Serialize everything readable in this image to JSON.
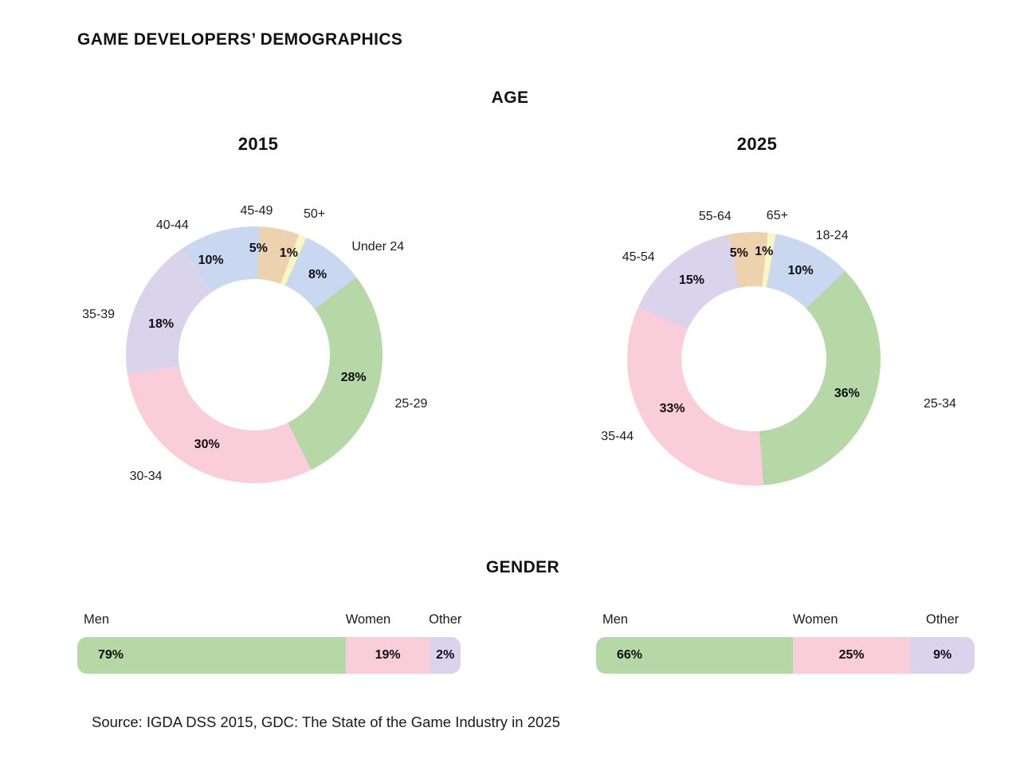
{
  "page": {
    "title": "GAME DEVELOPERS’ DEMOGRAPHICS",
    "source": "Source: IGDA DSS 2015, GDC: The State of the Game Industry in 2025"
  },
  "sections": {
    "age_title": "AGE",
    "gender_title": "GENDER"
  },
  "colors": {
    "green": "#b5d8a6",
    "pink": "#f9cdd9",
    "lavender": "#d9d4eb",
    "blue": "#c9d8f0",
    "tan": "#ecd3ae",
    "yellow": "#f6f7c5",
    "background": "#ffffff",
    "heading_text": "#111111",
    "label_text": "#1c1c1c",
    "value_text": "#120d12"
  },
  "chart_data": [
    {
      "id": "age-2015",
      "type": "donut",
      "section": "AGE",
      "title": "2015",
      "unit": "percent",
      "legend_position": "around",
      "segments": [
        {
          "label": "Under 24",
          "value": 8,
          "color": "blue",
          "lox": 36,
          "loy": 15
        },
        {
          "label": "25-29",
          "value": 28,
          "color": "green",
          "lox": 10,
          "loy": 18
        },
        {
          "label": "30-34",
          "value": 30,
          "color": "pink",
          "lox": -47,
          "loy": -17
        },
        {
          "label": "35-39",
          "value": 18,
          "color": "lavender",
          "lox": -20,
          "loy": 28,
          "poy": 14
        },
        {
          "label": "40-44",
          "value": 10,
          "color": "blue",
          "lox": -51,
          "loy": 23,
          "pox": -20,
          "poy": 5
        },
        {
          "label": "45-49",
          "value": 5,
          "color": "tan",
          "lox": -35,
          "loy": 8,
          "pox": -20,
          "poy": -8
        },
        {
          "label": "50+",
          "value": 1,
          "color": "yellow",
          "lox": 3,
          "loy": 2,
          "pox": -5,
          "poy": -8
        }
      ]
    },
    {
      "id": "age-2025",
      "type": "donut",
      "section": "AGE",
      "title": "2025",
      "unit": "percent",
      "legend_position": "around",
      "segments": [
        {
          "label": "18-24",
          "value": 10,
          "color": "blue",
          "lox": 8,
          "loy": 16
        },
        {
          "label": "25-34",
          "value": 36,
          "color": "green",
          "lox": 54,
          "loy": -11
        },
        {
          "label": "35-44",
          "value": 33,
          "color": "pink",
          "lox": -14,
          "loy": -12,
          "poy": -9
        },
        {
          "label": "45-54",
          "value": 15,
          "color": "lavender",
          "lox": -25,
          "loy": 23
        },
        {
          "label": "55-64",
          "value": 5,
          "color": "tan",
          "lox": -40,
          "loy": 14,
          "pox": -13,
          "poy": -7
        },
        {
          "label": "65+",
          "value": 1,
          "color": "yellow",
          "lox": 2,
          "loy": 11,
          "pox": -5,
          "poy": -10
        }
      ]
    },
    {
      "id": "gender-2015",
      "type": "stacked_bar",
      "section": "GENDER",
      "title": "2015",
      "unit": "percent",
      "segments": [
        {
          "label": "Men",
          "value": 79,
          "color": "green",
          "display_fraction": 0.7
        },
        {
          "label": "Women",
          "value": 19,
          "color": "pink",
          "display_fraction": 0.22
        },
        {
          "label": "Other",
          "value": 2,
          "color": "lavender",
          "display_fraction": 0.08
        }
      ]
    },
    {
      "id": "gender-2025",
      "type": "stacked_bar",
      "section": "GENDER",
      "title": "2025",
      "unit": "percent",
      "segments": [
        {
          "label": "Men",
          "value": 66,
          "color": "green",
          "display_fraction": 0.52
        },
        {
          "label": "Women",
          "value": 25,
          "color": "pink",
          "display_fraction": 0.31
        },
        {
          "label": "Other",
          "value": 9,
          "color": "lavender",
          "display_fraction": 0.17
        }
      ]
    }
  ]
}
